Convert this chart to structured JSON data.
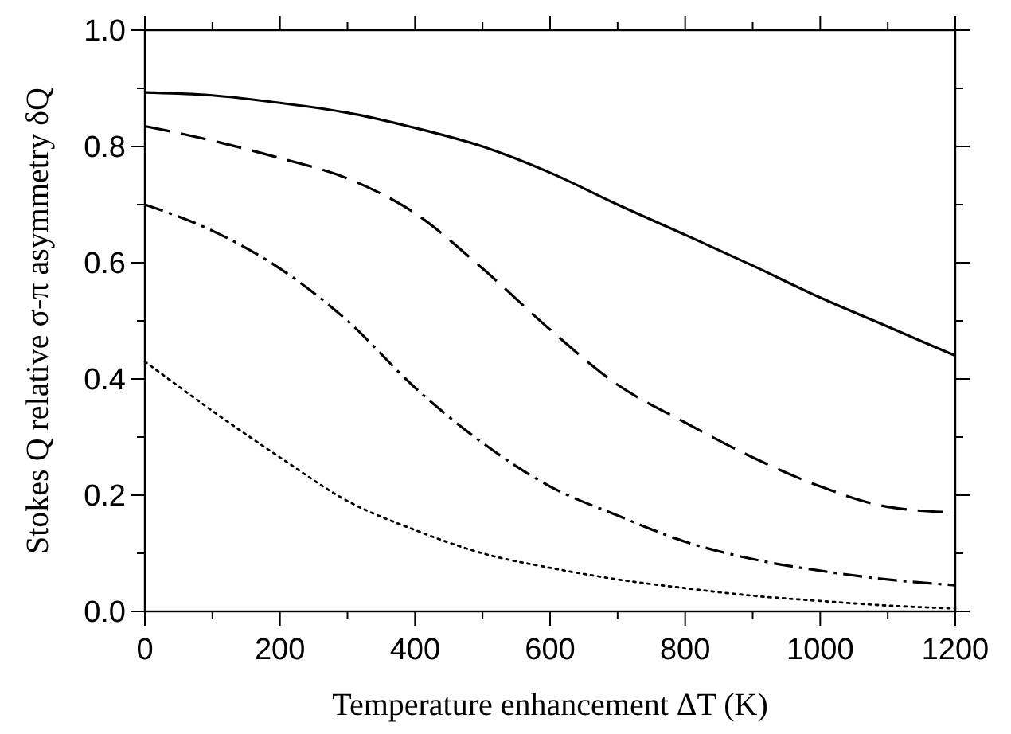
{
  "chart_data": {
    "type": "line",
    "xlabel": "Temperature enhancement ΔT (K)",
    "ylabel": "Stokes Q relative σ-π asymmetry δQ",
    "x": [
      0,
      100,
      200,
      300,
      400,
      500,
      600,
      700,
      800,
      900,
      1000,
      1100,
      1200
    ],
    "series": [
      {
        "color": "#000000",
        "line_style": "solid",
        "values": [
          0.893,
          0.888,
          0.875,
          0.858,
          0.832,
          0.8,
          0.755,
          0.7,
          0.648,
          0.595,
          0.54,
          0.49,
          0.44
        ]
      },
      {
        "color": "#000000",
        "line_style": "dashed",
        "values": [
          0.835,
          0.81,
          0.78,
          0.745,
          0.685,
          0.59,
          0.485,
          0.39,
          0.325,
          0.265,
          0.215,
          0.18,
          0.17
        ]
      },
      {
        "color": "#000000",
        "line_style": "dashdot",
        "values": [
          0.7,
          0.655,
          0.59,
          0.5,
          0.385,
          0.29,
          0.215,
          0.165,
          0.12,
          0.09,
          0.07,
          0.055,
          0.045
        ]
      },
      {
        "color": "#000000",
        "line_style": "dotted",
        "values": [
          0.43,
          0.345,
          0.265,
          0.19,
          0.14,
          0.1,
          0.075,
          0.055,
          0.04,
          0.027,
          0.018,
          0.01,
          0.005
        ]
      }
    ],
    "xlim": [
      0,
      1200
    ],
    "ylim": [
      0,
      1
    ],
    "xticks": [
      0,
      {
        "value": 100,
        "label": null
      },
      200,
      {
        "value": 300,
        "label": null
      },
      400,
      {
        "value": 500,
        "label": null
      },
      600,
      {
        "value": 700,
        "label": null
      },
      800,
      {
        "value": 900,
        "label": null
      },
      1000,
      {
        "value": 1100,
        "label": null
      },
      1200
    ],
    "yticks": [
      "0.0",
      {
        "value": 0.1,
        "label": null
      },
      {
        "value": 0.2,
        "label": "0.2"
      },
      {
        "value": 0.3,
        "label": null
      },
      {
        "value": 0.4,
        "label": "0.4"
      },
      {
        "value": 0.5,
        "label": null
      },
      {
        "value": 0.6,
        "label": "0.6"
      },
      {
        "value": 0.7,
        "label": null
      },
      {
        "value": 0.8,
        "label": "0.8"
      },
      {
        "value": 0.9,
        "label": null
      },
      {
        "value": 1,
        "label": "1.0"
      }
    ],
    "grid": false,
    "marker": "none"
  }
}
